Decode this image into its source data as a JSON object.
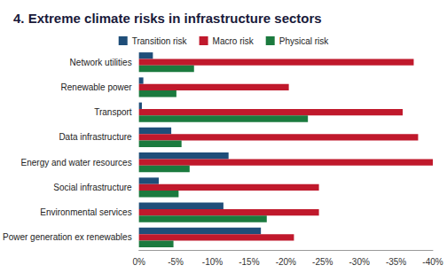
{
  "chart_data": {
    "type": "bar",
    "orientation": "horizontal",
    "title": "4. Extreme climate risks in infrastructure sectors",
    "categories": [
      "Network utilities",
      "Renewable power",
      "Transport",
      "Data infrastructure",
      "Energy and water resources",
      "Social infrastructure",
      "Environmental services",
      "Power generation ex renewables"
    ],
    "series": [
      {
        "name": "Transition risk",
        "color": "#1f4e79",
        "values": [
          -1.9,
          -0.6,
          -0.4,
          -4.4,
          -12.2,
          -2.7,
          -11.5,
          -16.6
        ]
      },
      {
        "name": "Macro risk",
        "color": "#c0192c",
        "values": [
          -37.4,
          -20.4,
          -35.9,
          -38.0,
          -40.0,
          -24.5,
          -24.5,
          -21.1
        ]
      },
      {
        "name": "Physical risk",
        "color": "#1b7a3e",
        "values": [
          -7.5,
          -5.1,
          -23.0,
          -5.8,
          -6.9,
          -5.4,
          -17.4,
          -4.7
        ]
      }
    ],
    "xlim": [
      -40,
      0
    ],
    "xticks": [
      {
        "value": 0,
        "label": "0%"
      },
      {
        "value": -5,
        "label": "-5%"
      },
      {
        "value": -10,
        "label": "-10%"
      },
      {
        "value": -15,
        "label": "-15%"
      },
      {
        "value": -20,
        "label": "-20%"
      },
      {
        "value": -25,
        "label": "-25%"
      },
      {
        "value": -30,
        "label": "-30%"
      },
      {
        "value": -35,
        "label": "-35%"
      },
      {
        "value": -40,
        "label": "-40%"
      }
    ],
    "legend": "top",
    "grid": false
  }
}
